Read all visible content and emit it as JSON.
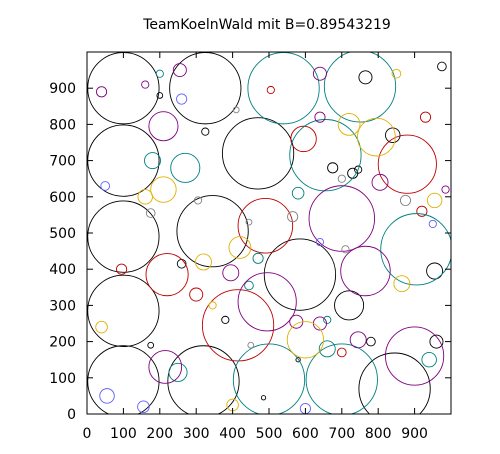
{
  "chart_data": {
    "type": "scatter",
    "title": "TeamKoelnWald mit B=0.89543219",
    "xlabel": "",
    "ylabel": "",
    "xlim": [
      0,
      1000
    ],
    "ylim": [
      0,
      1000
    ],
    "x_ticks": [
      0,
      100,
      200,
      300,
      400,
      500,
      600,
      700,
      800,
      900
    ],
    "y_ticks": [
      0,
      100,
      200,
      300,
      400,
      500,
      600,
      700,
      800,
      900
    ],
    "grid": false,
    "legend": "none",
    "series": [
      {
        "color": "#000000",
        "circles": [
          {
            "x": 100,
            "y": 900,
            "r": 98
          },
          {
            "x": 325,
            "y": 900,
            "r": 98
          },
          {
            "x": 100,
            "y": 700,
            "r": 98
          },
          {
            "x": 470,
            "y": 720,
            "r": 98
          },
          {
            "x": 100,
            "y": 490,
            "r": 98
          },
          {
            "x": 345,
            "y": 505,
            "r": 98
          },
          {
            "x": 100,
            "y": 285,
            "r": 98
          },
          {
            "x": 100,
            "y": 90,
            "r": 98
          },
          {
            "x": 320,
            "y": 90,
            "r": 98
          },
          {
            "x": 845,
            "y": 70,
            "r": 98
          },
          {
            "x": 585,
            "y": 385,
            "r": 98
          },
          {
            "x": 720,
            "y": 300,
            "r": 40
          },
          {
            "x": 765,
            "y": 930,
            "r": 18
          },
          {
            "x": 840,
            "y": 770,
            "r": 20
          },
          {
            "x": 955,
            "y": 395,
            "r": 22
          },
          {
            "x": 960,
            "y": 200,
            "r": 18
          },
          {
            "x": 780,
            "y": 200,
            "r": 12
          },
          {
            "x": 675,
            "y": 680,
            "r": 14
          },
          {
            "x": 730,
            "y": 665,
            "r": 14
          },
          {
            "x": 380,
            "y": 260,
            "r": 10
          },
          {
            "x": 260,
            "y": 415,
            "r": 12
          },
          {
            "x": 325,
            "y": 780,
            "r": 10
          },
          {
            "x": 200,
            "y": 880,
            "r": 8
          },
          {
            "x": 175,
            "y": 190,
            "r": 8
          },
          {
            "x": 745,
            "y": 675,
            "r": 10
          },
          {
            "x": 975,
            "y": 960,
            "r": 12
          },
          {
            "x": 485,
            "y": 45,
            "r": 6
          },
          {
            "x": 580,
            "y": 150,
            "r": 6
          }
        ]
      },
      {
        "color": "#c00000",
        "circles": [
          {
            "x": 415,
            "y": 245,
            "r": 98
          },
          {
            "x": 490,
            "y": 520,
            "r": 75
          },
          {
            "x": 880,
            "y": 690,
            "r": 80
          },
          {
            "x": 220,
            "y": 385,
            "r": 58
          },
          {
            "x": 595,
            "y": 760,
            "r": 35
          },
          {
            "x": 300,
            "y": 330,
            "r": 18
          },
          {
            "x": 920,
            "y": 560,
            "r": 14
          },
          {
            "x": 930,
            "y": 820,
            "r": 14
          },
          {
            "x": 700,
            "y": 170,
            "r": 12
          },
          {
            "x": 95,
            "y": 400,
            "r": 14
          },
          {
            "x": 505,
            "y": 895,
            "r": 10
          }
        ]
      },
      {
        "color": "#008080",
        "circles": [
          {
            "x": 540,
            "y": 900,
            "r": 98
          },
          {
            "x": 750,
            "y": 905,
            "r": 98
          },
          {
            "x": 655,
            "y": 715,
            "r": 98
          },
          {
            "x": 905,
            "y": 455,
            "r": 98
          },
          {
            "x": 700,
            "y": 95,
            "r": 98
          },
          {
            "x": 500,
            "y": 95,
            "r": 98
          },
          {
            "x": 270,
            "y": 680,
            "r": 40
          },
          {
            "x": 660,
            "y": 180,
            "r": 22
          },
          {
            "x": 940,
            "y": 150,
            "r": 20
          },
          {
            "x": 250,
            "y": 115,
            "r": 25
          },
          {
            "x": 180,
            "y": 700,
            "r": 22
          },
          {
            "x": 580,
            "y": 610,
            "r": 16
          },
          {
            "x": 470,
            "y": 430,
            "r": 14
          },
          {
            "x": 445,
            "y": 355,
            "r": 12
          },
          {
            "x": 200,
            "y": 940,
            "r": 10
          },
          {
            "x": 660,
            "y": 260,
            "r": 10
          }
        ]
      },
      {
        "color": "#800080",
        "circles": [
          {
            "x": 700,
            "y": 540,
            "r": 90
          },
          {
            "x": 765,
            "y": 395,
            "r": 68
          },
          {
            "x": 495,
            "y": 310,
            "r": 80
          },
          {
            "x": 210,
            "y": 795,
            "r": 40
          },
          {
            "x": 215,
            "y": 130,
            "r": 45
          },
          {
            "x": 900,
            "y": 160,
            "r": 80
          },
          {
            "x": 395,
            "y": 390,
            "r": 22
          },
          {
            "x": 575,
            "y": 255,
            "r": 18
          },
          {
            "x": 640,
            "y": 250,
            "r": 18
          },
          {
            "x": 805,
            "y": 640,
            "r": 22
          },
          {
            "x": 745,
            "y": 205,
            "r": 22
          },
          {
            "x": 640,
            "y": 940,
            "r": 18
          },
          {
            "x": 255,
            "y": 950,
            "r": 18
          },
          {
            "x": 640,
            "y": 820,
            "r": 14
          },
          {
            "x": 160,
            "y": 910,
            "r": 10
          },
          {
            "x": 40,
            "y": 890,
            "r": 14
          },
          {
            "x": 985,
            "y": 620,
            "r": 10
          }
        ]
      },
      {
        "color": "#e0b000",
        "circles": [
          {
            "x": 795,
            "y": 765,
            "r": 52
          },
          {
            "x": 600,
            "y": 205,
            "r": 50
          },
          {
            "x": 720,
            "y": 800,
            "r": 30
          },
          {
            "x": 210,
            "y": 620,
            "r": 35
          },
          {
            "x": 160,
            "y": 600,
            "r": 20
          },
          {
            "x": 420,
            "y": 460,
            "r": 30
          },
          {
            "x": 320,
            "y": 420,
            "r": 22
          },
          {
            "x": 400,
            "y": 25,
            "r": 16
          },
          {
            "x": 955,
            "y": 590,
            "r": 20
          },
          {
            "x": 865,
            "y": 360,
            "r": 22
          },
          {
            "x": 40,
            "y": 240,
            "r": 16
          },
          {
            "x": 345,
            "y": 300,
            "r": 10
          },
          {
            "x": 850,
            "y": 940,
            "r": 12
          }
        ]
      },
      {
        "color": "#808080",
        "circles": [
          {
            "x": 700,
            "y": 650,
            "r": 10
          },
          {
            "x": 175,
            "y": 555,
            "r": 12
          },
          {
            "x": 875,
            "y": 590,
            "r": 14
          },
          {
            "x": 565,
            "y": 545,
            "r": 14
          },
          {
            "x": 445,
            "y": 530,
            "r": 8
          },
          {
            "x": 710,
            "y": 455,
            "r": 10
          },
          {
            "x": 305,
            "y": 590,
            "r": 10
          },
          {
            "x": 410,
            "y": 840,
            "r": 8
          },
          {
            "x": 450,
            "y": 190,
            "r": 8
          }
        ]
      },
      {
        "color": "#6060ff",
        "circles": [
          {
            "x": 55,
            "y": 50,
            "r": 20
          },
          {
            "x": 155,
            "y": 20,
            "r": 16
          },
          {
            "x": 260,
            "y": 870,
            "r": 14
          },
          {
            "x": 600,
            "y": 15,
            "r": 14
          },
          {
            "x": 950,
            "y": 525,
            "r": 10
          },
          {
            "x": 640,
            "y": 475,
            "r": 10
          },
          {
            "x": 50,
            "y": 630,
            "r": 12
          }
        ]
      }
    ]
  }
}
